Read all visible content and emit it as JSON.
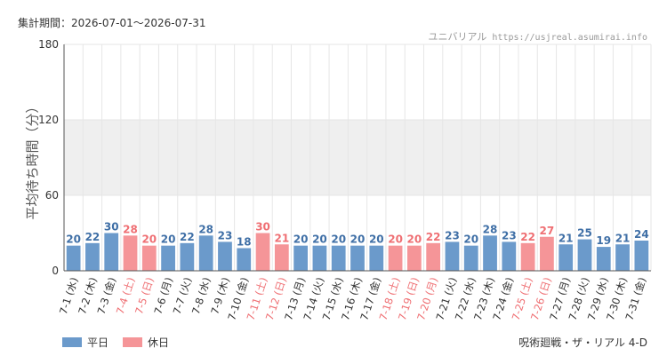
{
  "header": {
    "period": "集計期間：2026-07-01～2026-07-31",
    "site_name": "ユニバリアル",
    "site_url": "https://usjreal.asumirai.info"
  },
  "footer": {
    "attraction": "呪術廻戦・ザ・リアル 4-D"
  },
  "legend": [
    {
      "label": "平日",
      "color": "#6b9acb"
    },
    {
      "label": "休日",
      "color": "#f59598"
    }
  ],
  "colors": {
    "weekday": "#6b9acb",
    "weekday_label": "#3f6fa6",
    "holiday": "#f59598",
    "holiday_label": "#ef6f73",
    "band": "#efefef",
    "grid": "#e6e6e6",
    "axis": "#555555"
  },
  "chart_data": {
    "type": "bar",
    "ylabel": "平均待ち時間（分）",
    "ylim": [
      0,
      180
    ],
    "yticks": [
      0,
      60,
      120,
      180
    ],
    "shaded_band": [
      60,
      120
    ],
    "grid": true,
    "legend_position": "bottom-left",
    "categories": [
      "7-1 (水)",
      "7-2 (木)",
      "7-3 (金)",
      "7-4 (土)",
      "7-5 (日)",
      "7-6 (月)",
      "7-7 (火)",
      "7-8 (水)",
      "7-9 (木)",
      "7-10 (金)",
      "7-11 (土)",
      "7-12 (日)",
      "7-13 (月)",
      "7-14 (火)",
      "7-15 (水)",
      "7-16 (木)",
      "7-17 (金)",
      "7-18 (土)",
      "7-19 (日)",
      "7-20 (月)",
      "7-21 (火)",
      "7-22 (水)",
      "7-23 (木)",
      "7-24 (金)",
      "7-25 (土)",
      "7-26 (日)",
      "7-27 (月)",
      "7-28 (火)",
      "7-29 (水)",
      "7-30 (木)",
      "7-31 (金)"
    ],
    "values": [
      20,
      22,
      30,
      28,
      20,
      20,
      22,
      28,
      23,
      18,
      30,
      21,
      20,
      20,
      20,
      20,
      20,
      20,
      20,
      22,
      23,
      20,
      28,
      23,
      22,
      27,
      21,
      25,
      19,
      21,
      24
    ],
    "day_type": [
      "平日",
      "平日",
      "平日",
      "休日",
      "休日",
      "平日",
      "平日",
      "平日",
      "平日",
      "平日",
      "休日",
      "休日",
      "平日",
      "平日",
      "平日",
      "平日",
      "平日",
      "休日",
      "休日",
      "休日",
      "平日",
      "平日",
      "平日",
      "平日",
      "休日",
      "休日",
      "平日",
      "平日",
      "平日",
      "平日",
      "平日"
    ]
  }
}
